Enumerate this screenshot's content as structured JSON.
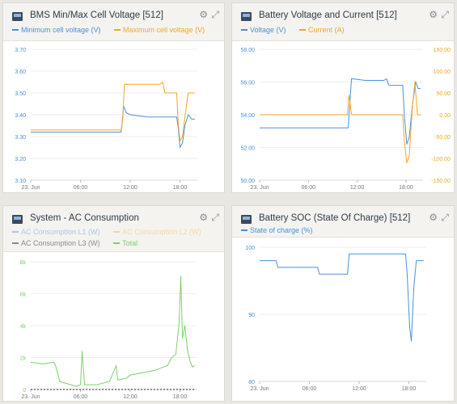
{
  "colors": {
    "blue": "#4a90d9",
    "orange": "#f5a623",
    "lightblue": "#a9c6e8",
    "lightorange": "#f8d6a1",
    "gray": "#8a8a8a",
    "green": "#7ed06c",
    "black": "#222222"
  },
  "panels": [
    {
      "title": "BMS Min/Max Cell Voltage [512]",
      "gear": "⚙",
      "expand": "⤢",
      "legend": [
        {
          "label": "Minimum cell voltage (V)",
          "color": "#4a90d9"
        },
        {
          "label": "Maximum cell voltage (V)",
          "color": "#f5a623"
        }
      ]
    },
    {
      "title": "Battery Voltage and Current [512]",
      "gear": "⚙",
      "expand": "⤢",
      "legend": [
        {
          "label": "Voltage (V)",
          "color": "#4a90d9"
        },
        {
          "label": "Current (A)",
          "color": "#f5a623"
        }
      ]
    },
    {
      "title": "System - AC Consumption",
      "gear": "⚙",
      "expand": "⤢",
      "legend": [
        {
          "label": "AC Consumption L1 (W)",
          "color": "#a9c6e8"
        },
        {
          "label": "AC Consumption L2 (W)",
          "color": "#f8d6a1"
        },
        {
          "label": "AC Consumption L3 (W)",
          "color": "#8a8a8a"
        },
        {
          "label": "Total",
          "color": "#7ed06c"
        }
      ]
    },
    {
      "title": "Battery SOC (State Of Charge) [512]",
      "gear": "⚙",
      "expand": "⤢",
      "legend": [
        {
          "label": "State of charge (%)",
          "color": "#4a90d9"
        }
      ]
    }
  ],
  "chart_data": [
    {
      "type": "line",
      "xticks": [
        "23. Jun",
        "06:00",
        "12:00",
        "18:00"
      ],
      "xtick_hours": [
        0,
        6,
        12,
        18
      ],
      "xlim": [
        0,
        20.1
      ],
      "ylim": [
        3.1,
        3.7
      ],
      "yticks": [
        "3.10",
        "3.20",
        "3.30",
        "3.40",
        "3.50",
        "3.60",
        "3.70"
      ],
      "ytick_values": [
        3.1,
        3.2,
        3.3,
        3.4,
        3.5,
        3.6,
        3.7
      ],
      "ytick_color": "#4a90d9",
      "series": [
        {
          "name": "Minimum cell voltage (V)",
          "color": "#4a90d9",
          "points": [
            [
              0,
              3.32
            ],
            [
              7,
              3.32
            ],
            [
              10.9,
              3.32
            ],
            [
              11.0,
              3.35
            ],
            [
              11.2,
              3.44
            ],
            [
              11.5,
              3.41
            ],
            [
              12,
              3.4
            ],
            [
              14,
              3.39
            ],
            [
              16,
              3.39
            ],
            [
              17.6,
              3.39
            ],
            [
              17.8,
              3.34
            ],
            [
              18.0,
              3.25
            ],
            [
              18.3,
              3.27
            ],
            [
              18.6,
              3.35
            ],
            [
              19.0,
              3.4
            ],
            [
              19.4,
              3.38
            ],
            [
              19.8,
              3.38
            ]
          ]
        },
        {
          "name": "Maximum cell voltage (V)",
          "color": "#f5a623",
          "points": [
            [
              0,
              3.33
            ],
            [
              7,
              3.33
            ],
            [
              10.9,
              3.33
            ],
            [
              11.1,
              3.38
            ],
            [
              11.3,
              3.54
            ],
            [
              12,
              3.54
            ],
            [
              14,
              3.54
            ],
            [
              15.6,
              3.54
            ],
            [
              15.9,
              3.55
            ],
            [
              16.2,
              3.5
            ],
            [
              17.6,
              3.5
            ],
            [
              17.8,
              3.36
            ],
            [
              18.0,
              3.28
            ],
            [
              18.3,
              3.3
            ],
            [
              18.7,
              3.42
            ],
            [
              19.0,
              3.5
            ],
            [
              19.8,
              3.5
            ]
          ]
        }
      ]
    },
    {
      "type": "line",
      "xticks": [
        "23. Jun",
        "06:00",
        "12:00",
        "18:00"
      ],
      "xtick_hours": [
        0,
        6,
        12,
        18
      ],
      "xlim": [
        0,
        20.1
      ],
      "ylim": [
        50,
        58
      ],
      "yticks": [
        "50.00",
        "52.00",
        "54.00",
        "56.00",
        "58.00"
      ],
      "ytick_values": [
        50,
        52,
        54,
        56,
        58
      ],
      "ytick_color": "#4a90d9",
      "y2lim": [
        -150,
        150
      ],
      "y2ticks": [
        "-150.00",
        "-100.00",
        "-50.00",
        "0.00",
        "50.00",
        "100.00",
        "150.00"
      ],
      "y2tick_values": [
        -150,
        -100,
        -50,
        0,
        50,
        100,
        150
      ],
      "y2tick_color": "#f5a623",
      "series": [
        {
          "name": "Voltage (V)",
          "color": "#4a90d9",
          "axis": "y",
          "points": [
            [
              0,
              53.2
            ],
            [
              10.9,
              53.2
            ],
            [
              11.0,
              54.0
            ],
            [
              11.3,
              56.2
            ],
            [
              13,
              56.1
            ],
            [
              15.3,
              56.1
            ],
            [
              15.6,
              56.2
            ],
            [
              15.9,
              55.8
            ],
            [
              17.6,
              55.8
            ],
            [
              17.8,
              54.0
            ],
            [
              18.1,
              52.2
            ],
            [
              18.4,
              52.6
            ],
            [
              18.8,
              54.6
            ],
            [
              19.2,
              56.0
            ],
            [
              19.5,
              55.6
            ],
            [
              19.8,
              55.6
            ]
          ]
        },
        {
          "name": "Current (A)",
          "color": "#f5a623",
          "axis": "y2",
          "points": [
            [
              0,
              0
            ],
            [
              10.8,
              0
            ],
            [
              11.0,
              45
            ],
            [
              11.3,
              0
            ],
            [
              17.6,
              0
            ],
            [
              17.8,
              -60
            ],
            [
              18.1,
              -110
            ],
            [
              18.4,
              -95
            ],
            [
              18.8,
              20
            ],
            [
              19.1,
              75
            ],
            [
              19.4,
              0
            ],
            [
              19.8,
              0
            ]
          ]
        }
      ]
    },
    {
      "type": "line",
      "xticks": [
        "23. Jun",
        "06:00",
        "12:00",
        "18:00"
      ],
      "xtick_hours": [
        0,
        6,
        12,
        18
      ],
      "xlim": [
        0,
        20.1
      ],
      "ylim": [
        0,
        8000
      ],
      "yticks": [
        "0",
        "2k",
        "4k",
        "6k",
        "8k"
      ],
      "ytick_values": [
        0,
        2000,
        4000,
        6000,
        8000
      ],
      "ytick_color": "#7ed06c",
      "series": [
        {
          "name": "Total",
          "color": "#7ed06c",
          "points": [
            [
              0,
              1700
            ],
            [
              1.5,
              1600
            ],
            [
              2.8,
              1700
            ],
            [
              3.0,
              1500
            ],
            [
              3.5,
              500
            ],
            [
              5.5,
              200
            ],
            [
              6,
              300
            ],
            [
              6.2,
              2400
            ],
            [
              6.5,
              300
            ],
            [
              8,
              300
            ],
            [
              9.5,
              500
            ],
            [
              10.3,
              1500
            ],
            [
              10.5,
              600
            ],
            [
              11.5,
              700
            ],
            [
              12,
              900
            ],
            [
              14,
              1100
            ],
            [
              15,
              1200
            ],
            [
              16,
              1400
            ],
            [
              16.5,
              1500
            ],
            [
              17,
              2000
            ],
            [
              17.5,
              2200
            ],
            [
              17.9,
              4200
            ],
            [
              18.1,
              7100
            ],
            [
              18.3,
              3200
            ],
            [
              18.6,
              4000
            ],
            [
              18.9,
              2500
            ],
            [
              19.2,
              1800
            ],
            [
              19.5,
              1400
            ],
            [
              19.8,
              1500
            ]
          ]
        },
        {
          "name": "AC Consumption L3 (W)",
          "color": "#222222",
          "points": [
            [
              0,
              0
            ],
            [
              19.8,
              0
            ]
          ]
        }
      ]
    },
    {
      "type": "line",
      "xticks": [
        "23. Jun",
        "06:00",
        "12:00",
        "18:00"
      ],
      "xtick_hours": [
        0,
        6,
        12,
        18
      ],
      "xlim": [
        0,
        20.1
      ],
      "ylim": [
        80,
        100
      ],
      "yticks": [
        "80",
        "90",
        "100"
      ],
      "ytick_values": [
        80,
        90,
        100
      ],
      "ytick_color": "#4a90d9",
      "series": [
        {
          "name": "State of charge (%)",
          "color": "#4a90d9",
          "points": [
            [
              0,
              98
            ],
            [
              2,
              98
            ],
            [
              2.2,
              97
            ],
            [
              7,
              97
            ],
            [
              7.2,
              96
            ],
            [
              10.6,
              96
            ],
            [
              10.8,
              99
            ],
            [
              17.6,
              99
            ],
            [
              17.8,
              96
            ],
            [
              18.1,
              88
            ],
            [
              18.3,
              86
            ],
            [
              18.6,
              94
            ],
            [
              18.9,
              98
            ],
            [
              19.8,
              98
            ]
          ]
        }
      ]
    }
  ]
}
